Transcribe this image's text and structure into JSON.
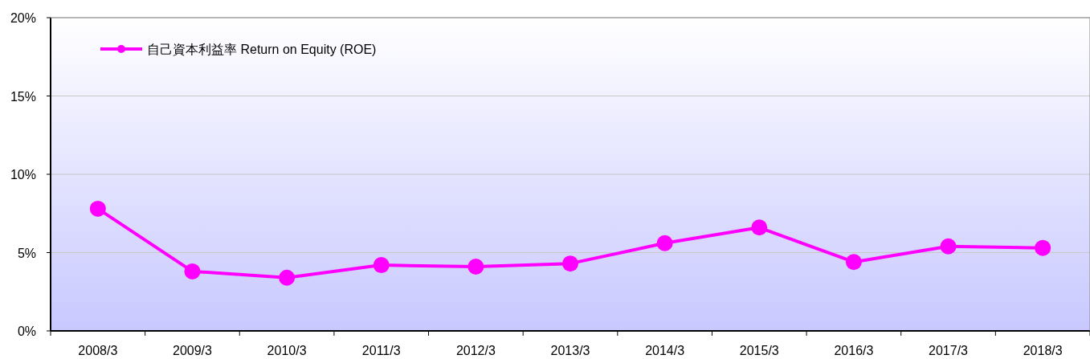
{
  "chart_data": {
    "type": "line",
    "categories": [
      "2008/3",
      "2009/3",
      "2010/3",
      "2011/3",
      "2012/3",
      "2013/3",
      "2014/3",
      "2015/3",
      "2016/3",
      "2017/3",
      "2018/3"
    ],
    "series": [
      {
        "name": "自己資本利益率 Return on Equity (ROE)",
        "color": "#ff00ff",
        "values": [
          7.8,
          3.8,
          3.4,
          4.2,
          4.1,
          4.3,
          5.6,
          6.6,
          4.4,
          5.4,
          5.3
        ]
      }
    ],
    "ylim": [
      0,
      20
    ],
    "yticks": [
      {
        "value": 0,
        "label": "0%"
      },
      {
        "value": 5,
        "label": "5%"
      },
      {
        "value": 10,
        "label": "10%"
      },
      {
        "value": 15,
        "label": "15%"
      },
      {
        "value": 20,
        "label": "20%"
      }
    ],
    "grid": "y",
    "legend": "top left",
    "marker": "circle",
    "line_style": "solid"
  }
}
